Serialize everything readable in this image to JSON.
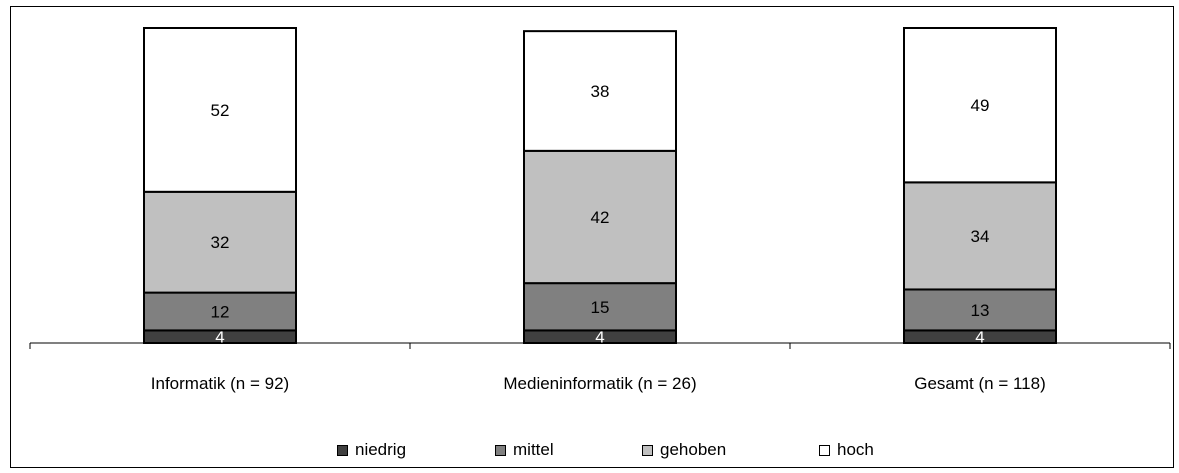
{
  "chart_data": {
    "type": "bar",
    "stacked": true,
    "percent": true,
    "categories": [
      "Informatik (n = 92)",
      "Medieninformatik (n = 26)",
      "Gesamt (n = 118)"
    ],
    "series": [
      {
        "name": "niedrig",
        "values": [
          4,
          4,
          4
        ],
        "color": "#404040"
      },
      {
        "name": "mittel",
        "values": [
          12,
          15,
          13
        ],
        "color": "#808080"
      },
      {
        "name": "gehoben",
        "values": [
          32,
          42,
          34
        ],
        "color": "#c0c0c0"
      },
      {
        "name": "hoch",
        "values": [
          52,
          38,
          49
        ],
        "color": "#ffffff"
      }
    ],
    "ylim": [
      0,
      100
    ],
    "grid": false,
    "legend_position": "bottom",
    "data_labels": true
  }
}
